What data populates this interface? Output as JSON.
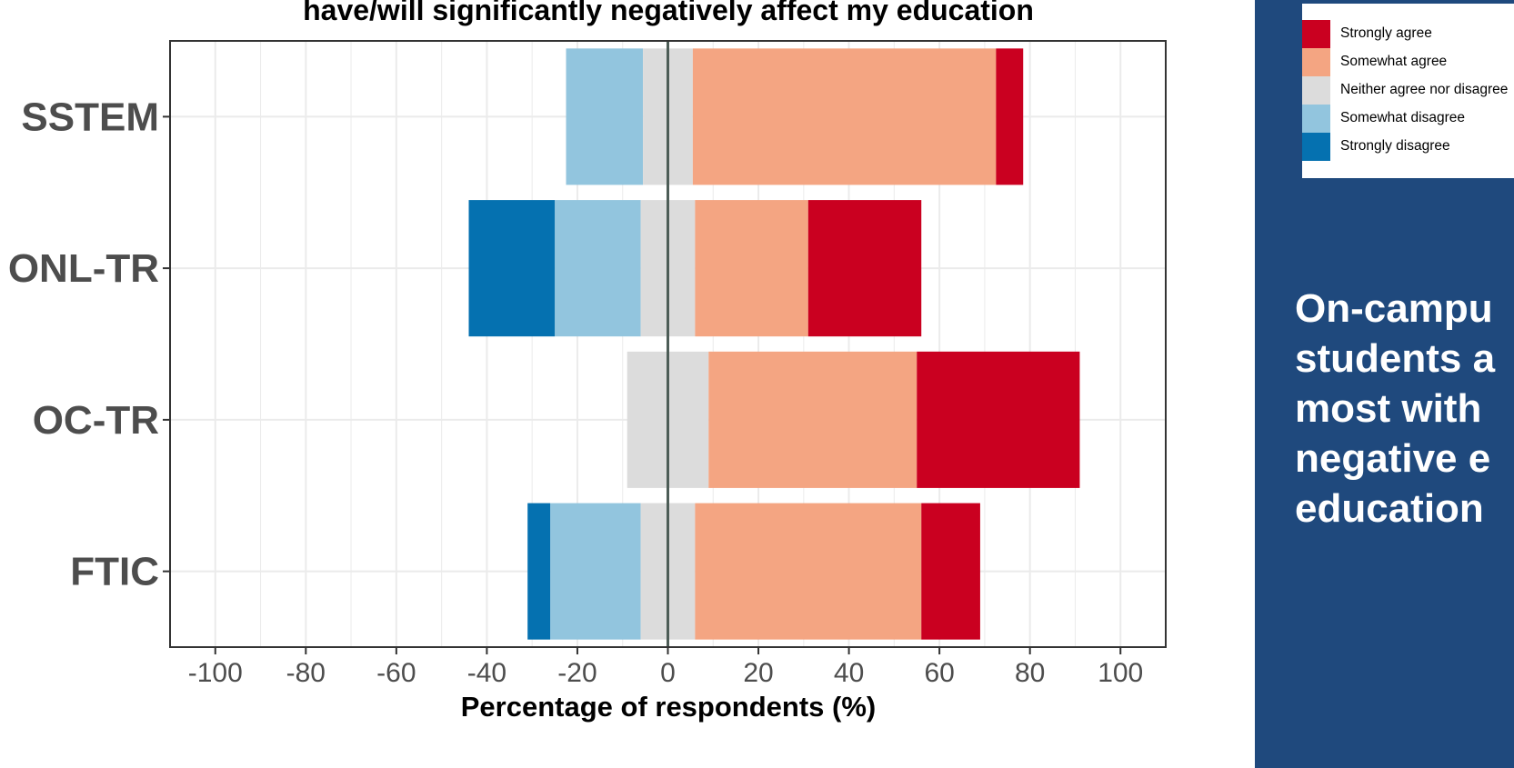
{
  "chart_data": {
    "type": "bar",
    "orientation": "horizontal-diverging-stacked",
    "title": "have/will significantly negatively affect my education",
    "xlabel": "Percentage of respondents (%)",
    "ylabel": "",
    "xlim": [
      -110,
      110
    ],
    "xticks": [
      -100,
      -80,
      -60,
      -40,
      -20,
      0,
      20,
      40,
      60,
      80,
      100
    ],
    "grid": true,
    "categories": [
      "SSTEM",
      "ONL-TR",
      "OC-TR",
      "FTIC"
    ],
    "series": [
      {
        "name": "Strongly disagree",
        "color": "#0571b0",
        "values": [
          0,
          19,
          0,
          5
        ]
      },
      {
        "name": "Somewhat disagree",
        "color": "#92c5de",
        "values": [
          17,
          19,
          0,
          20
        ]
      },
      {
        "name": "Neither agree nor disagree",
        "color": "#dcdcdc",
        "values": [
          11,
          12,
          18,
          12
        ]
      },
      {
        "name": "Somewhat agree",
        "color": "#f4a582",
        "values": [
          67,
          25,
          46,
          50
        ]
      },
      {
        "name": "Strongly agree",
        "color": "#ca0020",
        "values": [
          6,
          25,
          36,
          13
        ]
      }
    ],
    "legend": {
      "position": "right",
      "order": [
        "Strongly agree",
        "Somewhat agree",
        "Neither agree nor disagree",
        "Somewhat disagree",
        "Strongly disagree"
      ]
    }
  },
  "side_panel": {
    "background": "#1f497d",
    "headline_lines": [
      "On-campu",
      "students a",
      "most with",
      "negative e",
      "education"
    ]
  }
}
